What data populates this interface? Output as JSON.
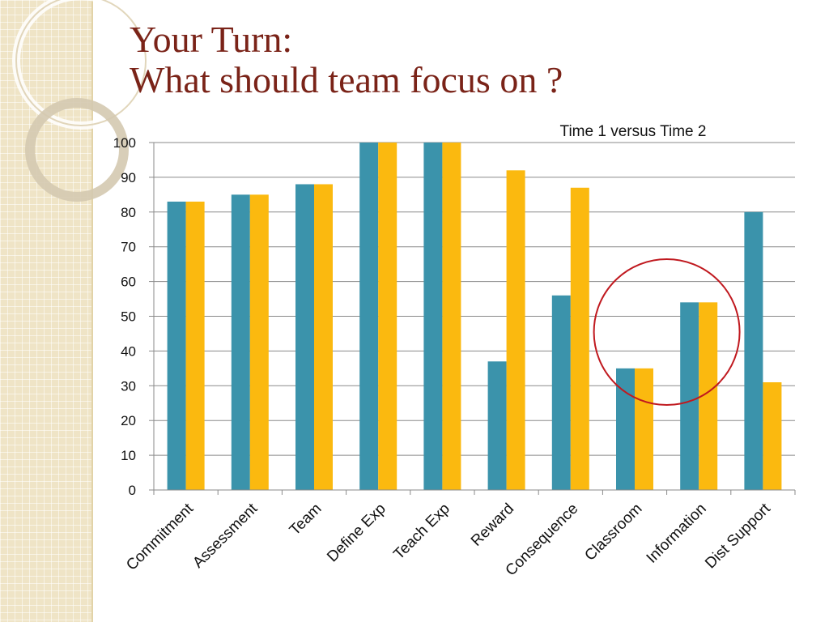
{
  "slide": {
    "title_line1": "Your Turn:",
    "title_line2": "What should team focus on ?"
  },
  "colors": {
    "series1": "#3b93ab",
    "series2": "#fbb90f",
    "highlight_circle": "#c0191f",
    "title": "#7a2318"
  },
  "chart_data": {
    "type": "bar",
    "title": "Time 1 versus Time 2",
    "xlabel": "",
    "ylabel": "",
    "categories": [
      "Commitment",
      "Assessment",
      "Team",
      "Define Exp",
      "Teach Exp",
      "Reward",
      "Consequence",
      "Classroom",
      "Information",
      "Dist Support"
    ],
    "series": [
      {
        "values": [
          83,
          85,
          88,
          100,
          100,
          37,
          56,
          35,
          54,
          80
        ]
      },
      {
        "values": [
          83,
          85,
          88,
          100,
          100,
          92,
          87,
          35,
          54,
          31
        ]
      }
    ],
    "ylim": [
      0,
      100
    ],
    "yticks": [
      0,
      10,
      20,
      30,
      40,
      50,
      60,
      70,
      80,
      90,
      100
    ],
    "grid": true,
    "legend": "none",
    "annotation": {
      "type": "circle",
      "encloses_categories": [
        "Classroom",
        "Information"
      ]
    }
  }
}
